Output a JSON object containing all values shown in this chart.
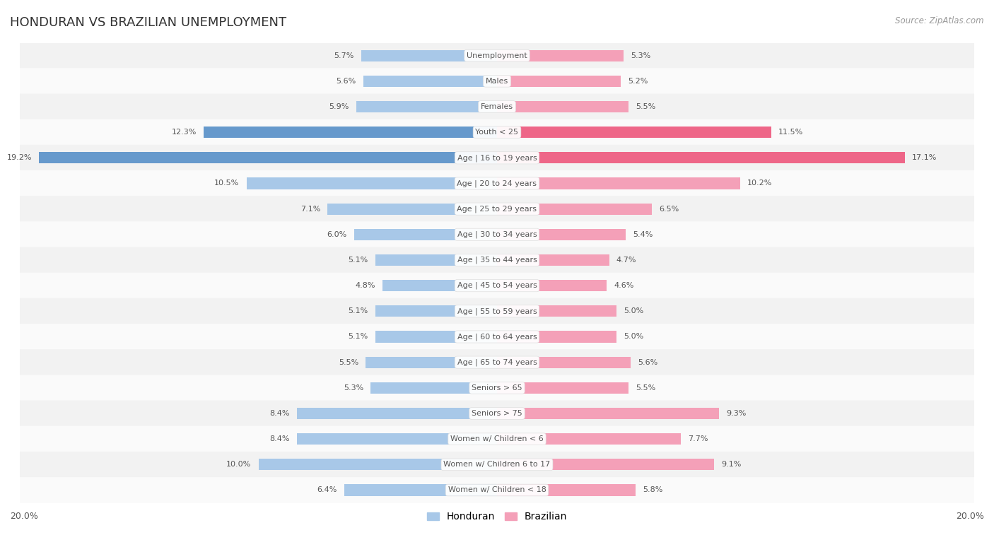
{
  "title": "HONDURAN VS BRAZILIAN UNEMPLOYMENT",
  "source": "Source: ZipAtlas.com",
  "categories": [
    "Unemployment",
    "Males",
    "Females",
    "Youth < 25",
    "Age | 16 to 19 years",
    "Age | 20 to 24 years",
    "Age | 25 to 29 years",
    "Age | 30 to 34 years",
    "Age | 35 to 44 years",
    "Age | 45 to 54 years",
    "Age | 55 to 59 years",
    "Age | 60 to 64 years",
    "Age | 65 to 74 years",
    "Seniors > 65",
    "Seniors > 75",
    "Women w/ Children < 6",
    "Women w/ Children 6 to 17",
    "Women w/ Children < 18"
  ],
  "honduran": [
    5.7,
    5.6,
    5.9,
    12.3,
    19.2,
    10.5,
    7.1,
    6.0,
    5.1,
    4.8,
    5.1,
    5.1,
    5.5,
    5.3,
    8.4,
    8.4,
    10.0,
    6.4
  ],
  "brazilian": [
    5.3,
    5.2,
    5.5,
    11.5,
    17.1,
    10.2,
    6.5,
    5.4,
    4.7,
    4.6,
    5.0,
    5.0,
    5.6,
    5.5,
    9.3,
    7.7,
    9.1,
    5.8
  ],
  "honduran_color": "#a8c8e8",
  "brazilian_color": "#f4a0b8",
  "honduran_color_highlight": "#6699cc",
  "brazilian_color_highlight": "#ee6688",
  "bg_color": "#ffffff",
  "row_color_odd": "#f2f2f2",
  "row_color_even": "#fafafa",
  "row_sep_color": "#e0e0e0",
  "max_val": 20.0,
  "legend_honduran": "Honduran",
  "legend_brazilian": "Brazilian",
  "title_color": "#333333",
  "source_color": "#999999",
  "label_color": "#555555",
  "center_label_color": "#555555",
  "highlight_rows": [
    "Youth < 25",
    "Age | 16 to 19 years"
  ]
}
